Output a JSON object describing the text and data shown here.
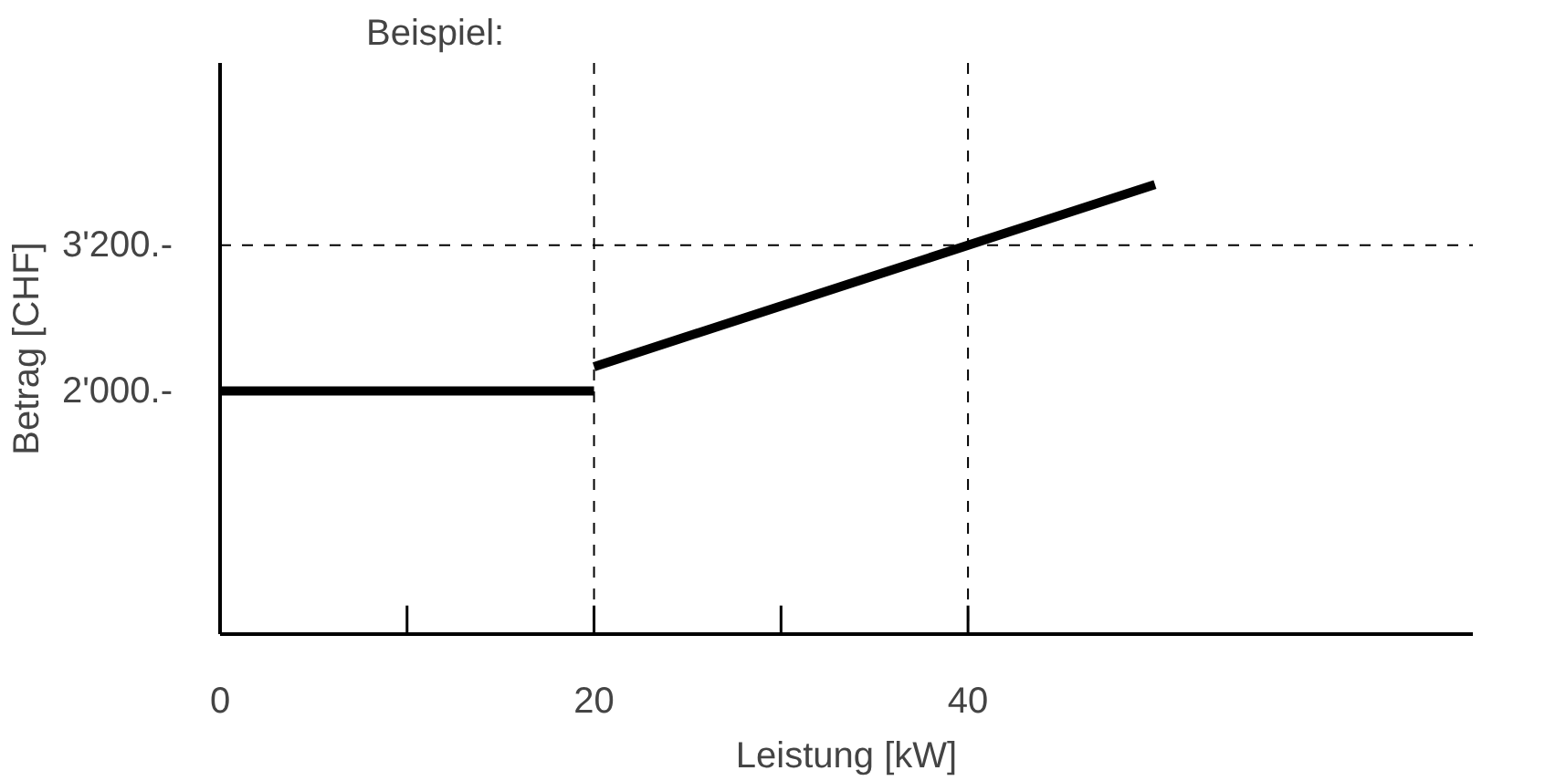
{
  "chart_data": {
    "type": "line",
    "title": "Beispiel:",
    "xlabel": "Leistung [kW]",
    "ylabel": "Betrag [CHF]",
    "xlim": [
      0,
      67
    ],
    "ylim": [
      0,
      4700
    ],
    "xticks": [
      0,
      {
        "value": 10,
        "label": null
      },
      20,
      {
        "value": 30,
        "label": null
      },
      40
    ],
    "yticks": [
      {
        "value": 2000,
        "label": "2'000.-"
      },
      {
        "value": 3200,
        "label": "3'200.-"
      }
    ],
    "series": [
      {
        "color": "#000000",
        "x": [
          0,
          20
        ],
        "values": [
          2000,
          2000
        ]
      },
      {
        "color": "#000000",
        "x": [
          20,
          50
        ],
        "values": [
          2200,
          3700
        ]
      }
    ],
    "ref_lines": [
      {
        "axis": "y",
        "value": 3200,
        "line_style": "dashed",
        "color": "#000000"
      },
      {
        "axis": "x",
        "value": 20,
        "line_style": "dashed",
        "color": "#000000"
      },
      {
        "axis": "x",
        "value": 40,
        "line_style": "dashed",
        "color": "#000000"
      }
    ],
    "grid": false,
    "line_style": "solid",
    "marker": "none"
  }
}
